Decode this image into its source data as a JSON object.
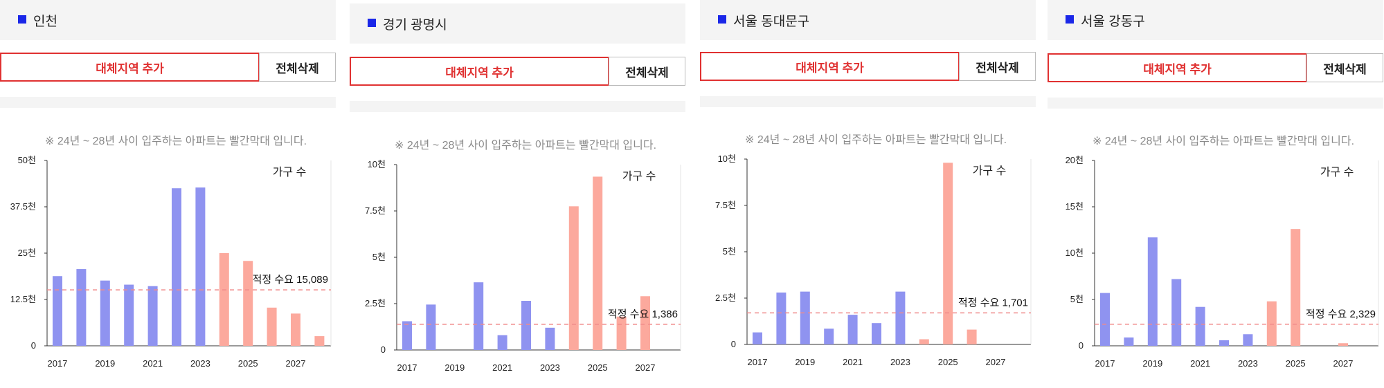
{
  "panels": [
    {
      "title": "인천",
      "add_button": "대체지역 추가",
      "delete_button": "전체삭제",
      "note": "※ 24년 ~ 28년 사이 입주하는 아파트는 빨간막대 입니다.",
      "legend": "가구 수",
      "demand_label": "적정 수요 15,089"
    },
    {
      "title": "경기 광명시",
      "add_button": "대체지역 추가",
      "delete_button": "전체삭제",
      "note": "※ 24년 ~ 28년 사이 입주하는 아파트는 빨간막대 입니다.",
      "legend": "가구 수",
      "demand_label": "적정 수요 1,386"
    },
    {
      "title": "서울 동대문구",
      "add_button": "대체지역 추가",
      "delete_button": "전체삭제",
      "note": "※ 24년 ~ 28년 사이 입주하는 아파트는 빨간막대 입니다.",
      "legend": "가구 수",
      "demand_label": "적정 수요 1,701"
    },
    {
      "title": "서울 강동구",
      "add_button": "대체지역 추가",
      "delete_button": "전체삭제",
      "note": "※ 24년 ~ 28년 사이 입주하는 아파트는 빨간막대 입니다.",
      "legend": "가구 수",
      "demand_label": "적정 수요 2,329"
    }
  ],
  "colors": {
    "past": "#8f93f0",
    "future": "#fca99d",
    "demand_line": "#f08a8a",
    "accent_red": "#e03131",
    "title_square": "#1a27e8"
  },
  "chart_data": [
    {
      "type": "bar",
      "region": "인천",
      "years": [
        2017,
        2018,
        2019,
        2020,
        2021,
        2022,
        2023,
        2024,
        2025,
        2026,
        2027,
        2028
      ],
      "x_tick_labels": [
        "2017",
        "2019",
        "2021",
        "2023",
        "2025",
        "2027"
      ],
      "y_tick_labels": [
        "0",
        "12.5천",
        "25천",
        "37.5천",
        "50천"
      ],
      "ylim": [
        0,
        50000
      ],
      "values": [
        18800,
        20700,
        17600,
        16500,
        16100,
        42500,
        42700,
        25000,
        22900,
        10300,
        8700,
        2600
      ],
      "future_from_year": 2024,
      "appropriate_demand": 15089
    },
    {
      "type": "bar",
      "region": "경기 광명시",
      "years": [
        2017,
        2018,
        2019,
        2020,
        2021,
        2022,
        2023,
        2024,
        2025,
        2026,
        2027
      ],
      "x_tick_labels": [
        "2017",
        "2019",
        "2021",
        "2023",
        "2025",
        "2027"
      ],
      "y_tick_labels": [
        "0",
        "2.5천",
        "5천",
        "7.5천",
        "10천"
      ],
      "ylim": [
        0,
        10000
      ],
      "values": [
        1550,
        2450,
        0,
        3650,
        800,
        2650,
        1200,
        7750,
        9350,
        1800,
        2900
      ],
      "future_from_year": 2024,
      "appropriate_demand": 1386
    },
    {
      "type": "bar",
      "region": "서울 동대문구",
      "years": [
        2017,
        2018,
        2019,
        2020,
        2021,
        2022,
        2023,
        2024,
        2025,
        2026,
        2027
      ],
      "x_tick_labels": [
        "2017",
        "2019",
        "2021",
        "2023",
        "2025",
        "2027"
      ],
      "y_tick_labels": [
        "0",
        "2.5천",
        "5천",
        "7.5천",
        "10천"
      ],
      "ylim": [
        0,
        10000
      ],
      "values": [
        650,
        2800,
        2850,
        850,
        1600,
        1150,
        2850,
        280,
        9800,
        800,
        0
      ],
      "future_from_year": 2024,
      "appropriate_demand": 1701
    },
    {
      "type": "bar",
      "region": "서울 강동구",
      "years": [
        2017,
        2018,
        2019,
        2020,
        2021,
        2022,
        2023,
        2024,
        2025,
        2026,
        2027
      ],
      "x_tick_labels": [
        "2017",
        "2019",
        "2021",
        "2023",
        "2025",
        "2027"
      ],
      "y_tick_labels": [
        "0",
        "5천",
        "10천",
        "15천",
        "20천"
      ],
      "ylim": [
        0,
        20000
      ],
      "values": [
        5700,
        900,
        11700,
        7200,
        4200,
        600,
        1250,
        4800,
        12600,
        0,
        280
      ],
      "future_from_year": 2024,
      "appropriate_demand": 2329
    }
  ]
}
